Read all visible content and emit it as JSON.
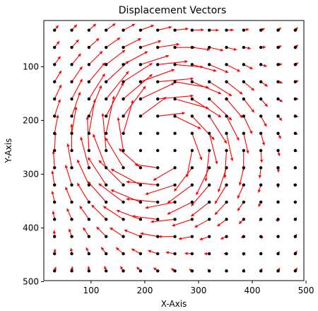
{
  "chart_data": {
    "type": "quiver",
    "title": "Displacement Vectors",
    "xlabel": "X-Axis",
    "ylabel": "Y-Axis",
    "xlim": [
      12,
      496
    ],
    "ylim": [
      498,
      14
    ],
    "y_inverted": true,
    "xticks": [
      100,
      200,
      300,
      400,
      500
    ],
    "yticks": [
      100,
      200,
      300,
      400,
      500
    ],
    "grid": false,
    "point_color": "#000000",
    "vector_color": "#ff0000",
    "grid_points": {
      "x_start": 32,
      "x_step": 32,
      "x_count": 15,
      "y_start": 32,
      "y_step": 32,
      "y_count": 15
    },
    "vortex": {
      "center": [
        224,
        240
      ],
      "core_radius": 96,
      "peak_displacement": 64,
      "direction": "clockwise",
      "background_drift": [
        4,
        -6
      ],
      "hidden_vectors_within": 40
    }
  }
}
